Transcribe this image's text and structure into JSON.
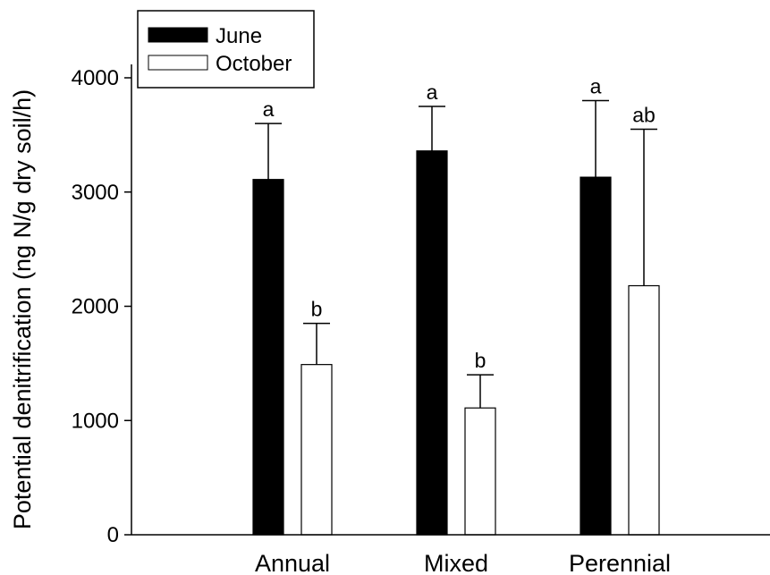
{
  "chart_data": {
    "type": "bar",
    "ylabel": "Potential denitrification (ng N/g dry soil/h)",
    "xlabel": "",
    "ylim": [
      0,
      4000
    ],
    "yticks": [
      0,
      1000,
      2000,
      3000,
      4000
    ],
    "categories": [
      "Annual",
      "Mixed",
      "Perennial"
    ],
    "series": [
      {
        "name": "June",
        "color": "#000000",
        "values": [
          3110,
          3360,
          3130
        ],
        "errors": [
          490,
          390,
          670
        ],
        "letters": [
          "a",
          "a",
          "a"
        ]
      },
      {
        "name": "October",
        "color": "#ffffff",
        "values": [
          1490,
          1110,
          2180
        ],
        "errors": [
          360,
          290,
          1370
        ],
        "letters": [
          "b",
          "b",
          "ab"
        ]
      }
    ],
    "legend_position": "top-left",
    "grid": false
  }
}
